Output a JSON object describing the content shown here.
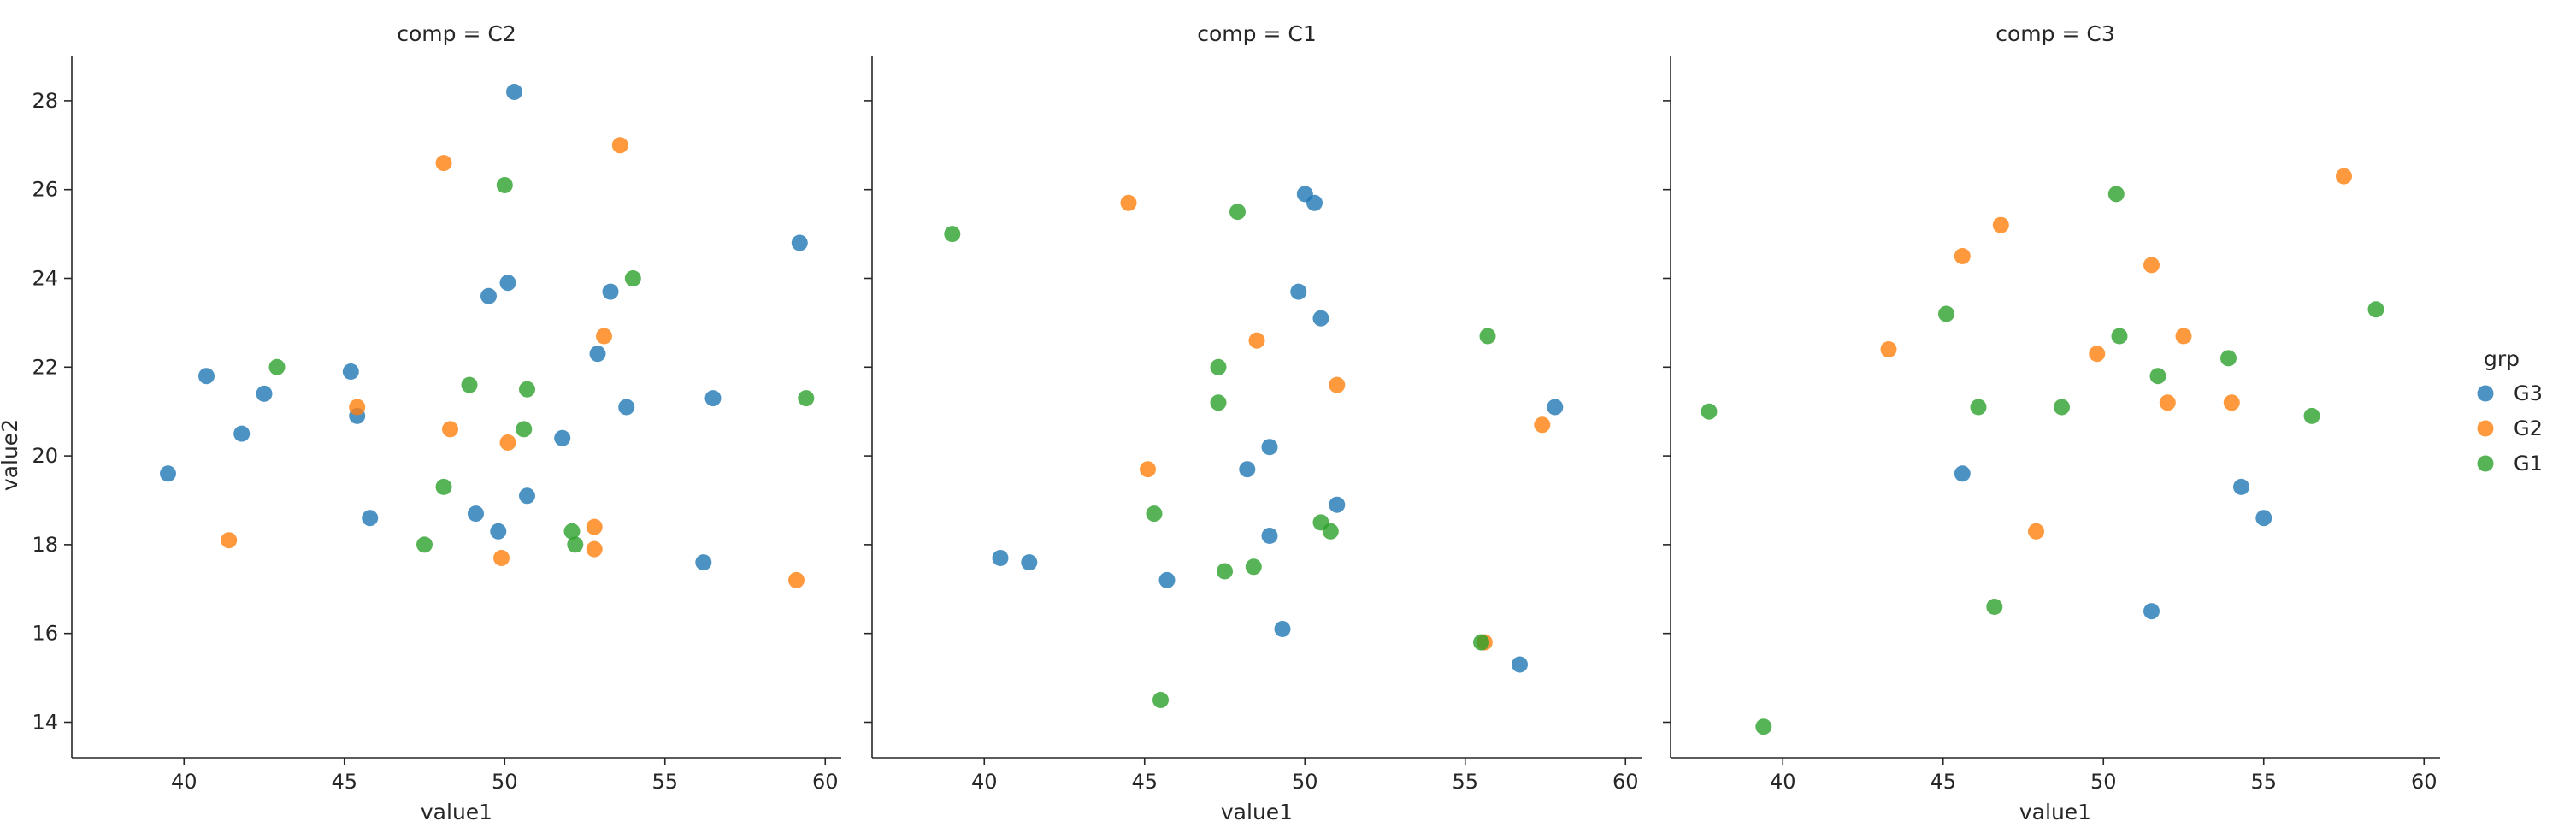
{
  "chart_data": {
    "type": "scatter",
    "xlabel": "value1",
    "ylabel": "value2",
    "xlim": [
      36.5,
      60.5
    ],
    "ylim": [
      13.2,
      29.0
    ],
    "xticks": [
      40,
      45,
      50,
      55,
      60
    ],
    "yticks": [
      14,
      16,
      18,
      20,
      22,
      24,
      26,
      28
    ],
    "grid": false,
    "legend": {
      "title": "grp",
      "position": "right",
      "entries": [
        "G3",
        "G2",
        "G1"
      ]
    },
    "colors": {
      "G3": "#1f77b4",
      "G2": "#ff7f0e",
      "G1": "#2ca02c"
    },
    "panels": [
      {
        "title": "comp = C2",
        "series": [
          {
            "name": "G3",
            "points": [
              [
                50.3,
                28.2
              ],
              [
                59.2,
                24.8
              ],
              [
                50.1,
                23.9
              ],
              [
                49.5,
                23.6
              ],
              [
                53.3,
                23.7
              ],
              [
                52.9,
                22.3
              ],
              [
                40.7,
                21.8
              ],
              [
                45.2,
                21.9
              ],
              [
                42.5,
                21.4
              ],
              [
                45.4,
                20.9
              ],
              [
                41.8,
                20.5
              ],
              [
                39.5,
                19.6
              ],
              [
                56.5,
                21.3
              ],
              [
                53.8,
                21.1
              ],
              [
                51.8,
                20.4
              ],
              [
                50.7,
                19.1
              ],
              [
                45.8,
                18.6
              ],
              [
                49.1,
                18.7
              ],
              [
                49.8,
                18.3
              ],
              [
                56.2,
                17.6
              ]
            ]
          },
          {
            "name": "G2",
            "points": [
              [
                53.6,
                27.0
              ],
              [
                48.1,
                26.6
              ],
              [
                53.1,
                22.7
              ],
              [
                45.4,
                21.1
              ],
              [
                48.3,
                20.6
              ],
              [
                50.1,
                20.3
              ],
              [
                41.4,
                18.1
              ],
              [
                52.8,
                18.4
              ],
              [
                52.8,
                17.9
              ],
              [
                49.9,
                17.7
              ],
              [
                59.1,
                17.2
              ]
            ]
          },
          {
            "name": "G1",
            "points": [
              [
                50.0,
                26.1
              ],
              [
                54.0,
                24.0
              ],
              [
                42.9,
                22.0
              ],
              [
                48.9,
                21.6
              ],
              [
                50.7,
                21.5
              ],
              [
                59.4,
                21.3
              ],
              [
                50.6,
                20.6
              ],
              [
                48.1,
                19.3
              ],
              [
                52.1,
                18.3
              ],
              [
                52.2,
                18.0
              ],
              [
                47.5,
                18.0
              ]
            ]
          }
        ]
      },
      {
        "title": "comp = C1",
        "series": [
          {
            "name": "G3",
            "points": [
              [
                50.0,
                25.9
              ],
              [
                50.3,
                25.7
              ],
              [
                49.8,
                23.7
              ],
              [
                50.5,
                23.1
              ],
              [
                57.8,
                21.1
              ],
              [
                48.9,
                20.2
              ],
              [
                48.2,
                19.7
              ],
              [
                51.0,
                18.9
              ],
              [
                48.9,
                18.2
              ],
              [
                40.5,
                17.7
              ],
              [
                41.4,
                17.6
              ],
              [
                45.7,
                17.2
              ],
              [
                49.3,
                16.1
              ],
              [
                56.7,
                15.3
              ]
            ]
          },
          {
            "name": "G2",
            "points": [
              [
                44.5,
                25.7
              ],
              [
                48.5,
                22.6
              ],
              [
                51.0,
                21.6
              ],
              [
                57.4,
                20.7
              ],
              [
                45.1,
                19.7
              ],
              [
                55.6,
                15.8
              ]
            ]
          },
          {
            "name": "G1",
            "points": [
              [
                39.0,
                25.0
              ],
              [
                47.9,
                25.5
              ],
              [
                55.7,
                22.7
              ],
              [
                47.3,
                22.0
              ],
              [
                47.3,
                21.2
              ],
              [
                45.3,
                18.7
              ],
              [
                50.5,
                18.5
              ],
              [
                50.8,
                18.3
              ],
              [
                47.5,
                17.4
              ],
              [
                48.4,
                17.5
              ],
              [
                55.5,
                15.8
              ],
              [
                45.5,
                14.5
              ]
            ]
          }
        ]
      },
      {
        "title": "comp = C3",
        "series": [
          {
            "name": "G3",
            "points": [
              [
                45.6,
                19.6
              ],
              [
                54.3,
                19.3
              ],
              [
                55.0,
                18.6
              ],
              [
                51.5,
                16.5
              ]
            ]
          },
          {
            "name": "G2",
            "points": [
              [
                57.5,
                26.3
              ],
              [
                46.8,
                25.2
              ],
              [
                45.6,
                24.5
              ],
              [
                51.5,
                24.3
              ],
              [
                43.3,
                22.4
              ],
              [
                49.8,
                22.3
              ],
              [
                52.5,
                22.7
              ],
              [
                52.0,
                21.2
              ],
              [
                54.0,
                21.2
              ],
              [
                47.9,
                18.3
              ]
            ]
          },
          {
            "name": "G1",
            "points": [
              [
                50.4,
                25.9
              ],
              [
                45.1,
                23.2
              ],
              [
                58.5,
                23.3
              ],
              [
                50.5,
                22.7
              ],
              [
                53.9,
                22.2
              ],
              [
                51.7,
                21.8
              ],
              [
                37.7,
                21.0
              ],
              [
                46.1,
                21.1
              ],
              [
                48.7,
                21.1
              ],
              [
                56.5,
                20.9
              ],
              [
                46.6,
                16.6
              ],
              [
                39.4,
                13.9
              ]
            ]
          }
        ]
      }
    ]
  }
}
